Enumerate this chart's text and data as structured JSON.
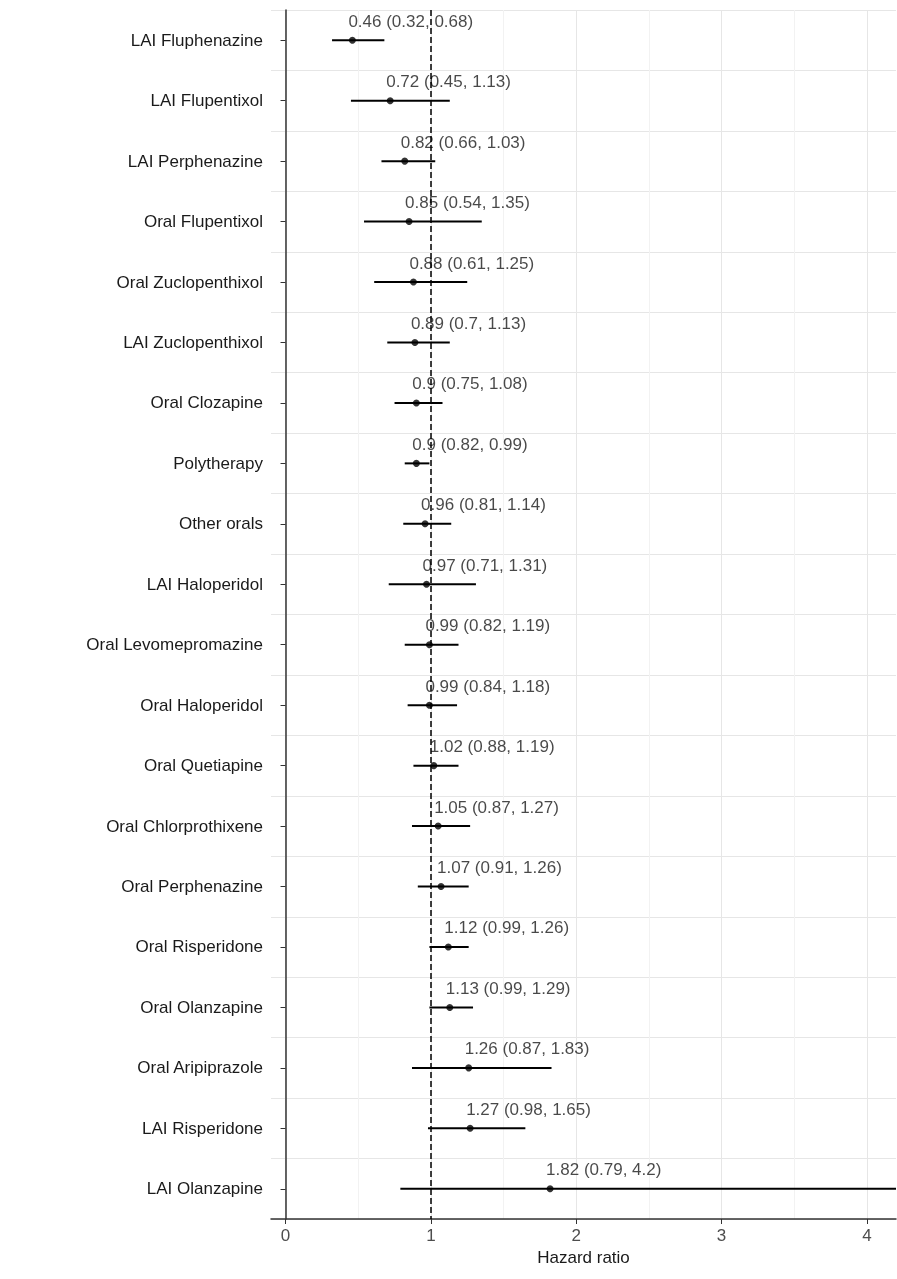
{
  "chart_data": {
    "type": "scatter",
    "orientation": "horizontal",
    "xlabel": "Hazard ratio",
    "categories": [
      "LAI Fluphenazine",
      "LAI Flupentixol",
      "LAI Perphenazine",
      "Oral Flupentixol",
      "Oral Zuclopenthixol",
      "LAI Zuclopenthixol",
      "Oral Clozapine",
      "Polytherapy",
      "Other orals",
      "LAI Haloperidol",
      "Oral Levomepromazine",
      "Oral Haloperidol",
      "Oral Quetiapine",
      "Oral Chlorprothixene",
      "Oral Perphenazine",
      "Oral Risperidone",
      "Oral Olanzapine",
      "Oral Aripiprazole",
      "LAI Risperidone",
      "LAI Olanzapine"
    ],
    "series": [
      {
        "color": "#000000",
        "values": [
          0.46,
          0.72,
          0.82,
          0.85,
          0.88,
          0.89,
          0.9,
          0.9,
          0.96,
          0.97,
          0.99,
          0.99,
          1.02,
          1.05,
          1.07,
          1.12,
          1.13,
          1.26,
          1.27,
          1.82
        ],
        "errors": [
          [
            0.32,
            0.68
          ],
          [
            0.45,
            1.13
          ],
          [
            0.66,
            1.03
          ],
          [
            0.54,
            1.35
          ],
          [
            0.61,
            1.25
          ],
          [
            0.7,
            1.13
          ],
          [
            0.75,
            1.08
          ],
          [
            0.82,
            0.99
          ],
          [
            0.81,
            1.14
          ],
          [
            0.71,
            1.31
          ],
          [
            0.82,
            1.19
          ],
          [
            0.84,
            1.18
          ],
          [
            0.88,
            1.19
          ],
          [
            0.87,
            1.27
          ],
          [
            0.91,
            1.26
          ],
          [
            0.99,
            1.26
          ],
          [
            0.99,
            1.29
          ],
          [
            0.87,
            1.83
          ],
          [
            0.98,
            1.65
          ],
          [
            0.79,
            4.2
          ]
        ],
        "value_labels": [
          "0.46 (0.32, 0.68)",
          "0.72 (0.45, 1.13)",
          "0.82 (0.66, 1.03)",
          "0.85 (0.54, 1.35)",
          "0.88 (0.61, 1.25)",
          "0.89 (0.7, 1.13)",
          "0.9 (0.75, 1.08)",
          "0.9 (0.82, 0.99)",
          "0.96 (0.81, 1.14)",
          "0.97 (0.71, 1.31)",
          "0.99 (0.82, 1.19)",
          "0.99 (0.84, 1.18)",
          "1.02 (0.88, 1.19)",
          "1.05 (0.87, 1.27)",
          "1.07 (0.91, 1.26)",
          "1.12 (0.99, 1.26)",
          "1.13 (0.99, 1.29)",
          "1.26 (0.87, 1.83)",
          "1.27 (0.98, 1.65)",
          "1.82 (0.79, 4.2)"
        ]
      }
    ],
    "xlim": [
      -0.1,
      4.2
    ],
    "xticks": [
      0,
      1,
      2,
      3,
      4
    ],
    "grid": true,
    "marker": "circle",
    "ref_lines": [
      {
        "axis": "x",
        "value": 1,
        "line_style": "dashed",
        "color": "#000000"
      }
    ]
  }
}
